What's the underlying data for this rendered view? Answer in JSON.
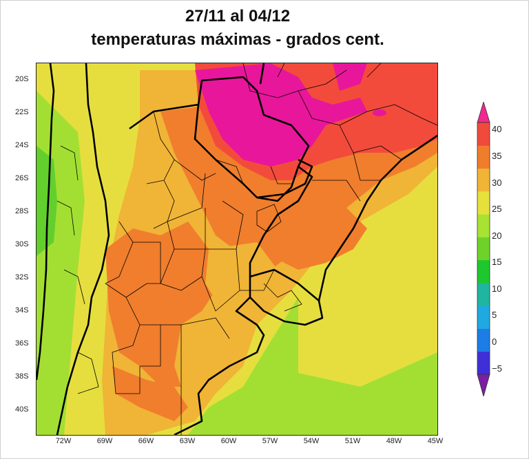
{
  "title_line1": "27/11 al 04/12",
  "title_line2": "temperaturas máximas - grados cent.",
  "map": {
    "lat_labels": [
      "20S",
      "22S",
      "24S",
      "26S",
      "28S",
      "30S",
      "32S",
      "34S",
      "36S",
      "38S",
      "40S"
    ],
    "lon_labels": [
      "72W",
      "69W",
      "66W",
      "63W",
      "60W",
      "57W",
      "54W",
      "51W",
      "48W",
      "45W"
    ],
    "extent": {
      "lon_min": -74,
      "lon_max": -45,
      "lat_max": -19,
      "lat_min": -41.5
    }
  },
  "colorbar": {
    "tick_labels": [
      "40",
      "35",
      "30",
      "25",
      "20",
      "15",
      "10",
      "5",
      "0",
      "−5"
    ],
    "colors": [
      "#7b1fa2",
      "#3f2fd6",
      "#1e7ce6",
      "#1fa9e0",
      "#20b5a0",
      "#1ec72e",
      "#6fd22a",
      "#a8e233",
      "#e7e03c",
      "#f0b436",
      "#f07d2b",
      "#f04a3c",
      "#f02a8e"
    ]
  },
  "legend_colors": {
    "above_40": "#e8169b",
    "35_40": "#f24b3c",
    "30_35": "#f07e2d",
    "25_30": "#f0b436",
    "20_25": "#e6de3f",
    "15_20": "#a3df33",
    "10_15": "#62cf2c"
  }
}
